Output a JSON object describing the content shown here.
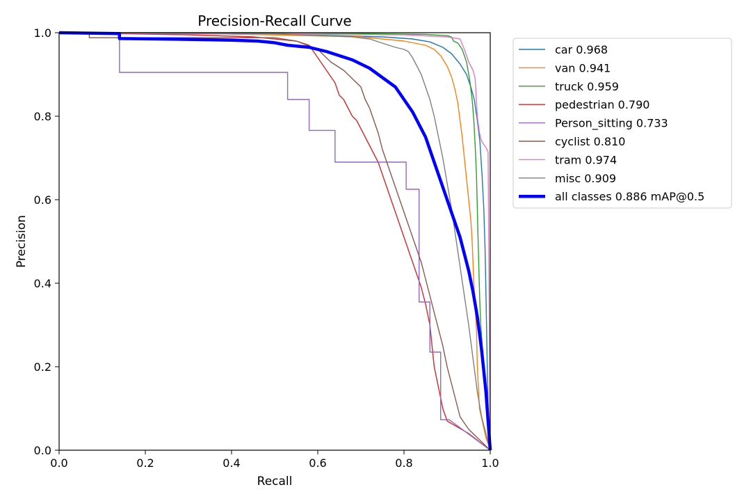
{
  "chart_data": {
    "type": "line",
    "title": "Precision-Recall Curve",
    "xlabel": "Recall",
    "ylabel": "Precision",
    "xlim": [
      0,
      1
    ],
    "ylim": [
      0,
      1
    ],
    "x_ticks": [
      "0.0",
      "0.2",
      "0.4",
      "0.6",
      "0.8",
      "1.0"
    ],
    "y_ticks": [
      "0.0",
      "0.2",
      "0.4",
      "0.6",
      "0.8",
      "1.0"
    ],
    "grid": false,
    "legend_position": "outside-right",
    "series": [
      {
        "name": "car",
        "label": "car 0.968",
        "color": "#1f77b4",
        "width": "thin",
        "points": [
          [
            0,
            1
          ],
          [
            0.3,
            0.998
          ],
          [
            0.6,
            0.994
          ],
          [
            0.75,
            0.99
          ],
          [
            0.82,
            0.985
          ],
          [
            0.86,
            0.978
          ],
          [
            0.89,
            0.965
          ],
          [
            0.91,
            0.95
          ],
          [
            0.93,
            0.925
          ],
          [
            0.945,
            0.9
          ],
          [
            0.955,
            0.87
          ],
          [
            0.963,
            0.84
          ],
          [
            0.97,
            0.79
          ],
          [
            0.976,
            0.74
          ],
          [
            0.981,
            0.66
          ],
          [
            0.985,
            0.58
          ],
          [
            0.988,
            0.48
          ],
          [
            0.99,
            0.38
          ],
          [
            0.993,
            0.2
          ],
          [
            0.996,
            0.08
          ],
          [
            1,
            0
          ]
        ]
      },
      {
        "name": "van",
        "label": "van 0.941",
        "color": "#ff7f0e",
        "width": "thin",
        "points": [
          [
            0,
            1
          ],
          [
            0.4,
            0.997
          ],
          [
            0.7,
            0.99
          ],
          [
            0.8,
            0.98
          ],
          [
            0.85,
            0.97
          ],
          [
            0.87,
            0.96
          ],
          [
            0.885,
            0.945
          ],
          [
            0.9,
            0.92
          ],
          [
            0.91,
            0.895
          ],
          [
            0.918,
            0.865
          ],
          [
            0.925,
            0.83
          ],
          [
            0.93,
            0.79
          ],
          [
            0.935,
            0.75
          ],
          [
            0.94,
            0.7
          ],
          [
            0.945,
            0.65
          ],
          [
            0.95,
            0.6
          ],
          [
            0.955,
            0.55
          ],
          [
            0.958,
            0.5
          ],
          [
            0.96,
            0.45
          ],
          [
            0.962,
            0.4
          ],
          [
            0.965,
            0.34
          ],
          [
            0.968,
            0.29
          ],
          [
            0.97,
            0.2
          ],
          [
            0.975,
            0.1
          ],
          [
            0.99,
            0.03
          ],
          [
            1,
            0
          ]
        ]
      },
      {
        "name": "truck",
        "label": "truck 0.959",
        "color": "#2ca02c",
        "width": "thin",
        "points": [
          [
            0,
            1
          ],
          [
            0.5,
            1
          ],
          [
            0.7,
            0.998
          ],
          [
            0.85,
            0.996
          ],
          [
            0.9,
            0.993
          ],
          [
            0.91,
            0.99
          ],
          [
            0.915,
            0.98
          ],
          [
            0.925,
            0.975
          ],
          [
            0.935,
            0.96
          ],
          [
            0.945,
            0.93
          ],
          [
            0.952,
            0.89
          ],
          [
            0.958,
            0.84
          ],
          [
            0.962,
            0.79
          ],
          [
            0.965,
            0.73
          ],
          [
            0.968,
            0.66
          ],
          [
            0.97,
            0.58
          ],
          [
            0.972,
            0.5
          ],
          [
            0.974,
            0.42
          ],
          [
            0.976,
            0.35
          ],
          [
            0.978,
            0.3
          ],
          [
            0.985,
            0.2
          ],
          [
            0.995,
            0.08
          ],
          [
            1,
            0
          ]
        ]
      },
      {
        "name": "pedestrian",
        "label": "pedestrian 0.790",
        "color": "#d62728",
        "width": "thin",
        "points": [
          [
            0,
            1
          ],
          [
            0.3,
            0.995
          ],
          [
            0.45,
            0.99
          ],
          [
            0.55,
            0.98
          ],
          [
            0.58,
            0.97
          ],
          [
            0.6,
            0.94
          ],
          [
            0.62,
            0.91
          ],
          [
            0.64,
            0.88
          ],
          [
            0.65,
            0.85
          ],
          [
            0.66,
            0.84
          ],
          [
            0.67,
            0.82
          ],
          [
            0.68,
            0.8
          ],
          [
            0.69,
            0.79
          ],
          [
            0.7,
            0.77
          ],
          [
            0.71,
            0.75
          ],
          [
            0.72,
            0.73
          ],
          [
            0.73,
            0.71
          ],
          [
            0.74,
            0.69
          ],
          [
            0.75,
            0.66
          ],
          [
            0.76,
            0.63
          ],
          [
            0.77,
            0.6
          ],
          [
            0.78,
            0.57
          ],
          [
            0.79,
            0.54
          ],
          [
            0.8,
            0.51
          ],
          [
            0.81,
            0.48
          ],
          [
            0.82,
            0.45
          ],
          [
            0.83,
            0.42
          ],
          [
            0.84,
            0.39
          ],
          [
            0.85,
            0.35
          ],
          [
            0.86,
            0.3
          ],
          [
            0.865,
            0.25
          ],
          [
            0.87,
            0.2
          ],
          [
            0.88,
            0.15
          ],
          [
            0.89,
            0.1
          ],
          [
            0.9,
            0.07
          ],
          [
            0.95,
            0.04
          ],
          [
            1,
            0
          ]
        ]
      },
      {
        "name": "Person_sitting",
        "label": "Person_sitting 0.733",
        "color": "#9467bd",
        "width": "thin",
        "points": [
          [
            0,
            1
          ],
          [
            0.14,
            1
          ],
          [
            0.14,
            0.986
          ],
          [
            0.14,
            0.905
          ],
          [
            0.53,
            0.905
          ],
          [
            0.53,
            0.84
          ],
          [
            0.58,
            0.84
          ],
          [
            0.58,
            0.766
          ],
          [
            0.64,
            0.766
          ],
          [
            0.64,
            0.69
          ],
          [
            0.805,
            0.69
          ],
          [
            0.805,
            0.625
          ],
          [
            0.835,
            0.625
          ],
          [
            0.835,
            0.355
          ],
          [
            0.86,
            0.355
          ],
          [
            0.86,
            0.235
          ],
          [
            0.885,
            0.235
          ],
          [
            0.885,
            0.073
          ],
          [
            0.905,
            0.073
          ],
          [
            1,
            0
          ]
        ]
      },
      {
        "name": "cyclist",
        "label": "cyclist 0.810",
        "color": "#8c564b",
        "width": "thin",
        "points": [
          [
            0,
            1
          ],
          [
            0.07,
            1
          ],
          [
            0.07,
            0.988
          ],
          [
            0.5,
            0.988
          ],
          [
            0.55,
            0.98
          ],
          [
            0.6,
            0.96
          ],
          [
            0.63,
            0.93
          ],
          [
            0.66,
            0.91
          ],
          [
            0.68,
            0.89
          ],
          [
            0.7,
            0.87
          ],
          [
            0.71,
            0.84
          ],
          [
            0.72,
            0.82
          ],
          [
            0.73,
            0.79
          ],
          [
            0.74,
            0.76
          ],
          [
            0.75,
            0.72
          ],
          [
            0.76,
            0.69
          ],
          [
            0.77,
            0.66
          ],
          [
            0.78,
            0.63
          ],
          [
            0.79,
            0.6
          ],
          [
            0.8,
            0.57
          ],
          [
            0.81,
            0.54
          ],
          [
            0.82,
            0.51
          ],
          [
            0.83,
            0.48
          ],
          [
            0.84,
            0.45
          ],
          [
            0.85,
            0.41
          ],
          [
            0.86,
            0.37
          ],
          [
            0.87,
            0.33
          ],
          [
            0.88,
            0.29
          ],
          [
            0.89,
            0.25
          ],
          [
            0.9,
            0.2
          ],
          [
            0.91,
            0.16
          ],
          [
            0.92,
            0.12
          ],
          [
            0.93,
            0.08
          ],
          [
            0.95,
            0.05
          ],
          [
            1,
            0
          ]
        ]
      },
      {
        "name": "tram",
        "label": "tram 0.974",
        "color": "#e377c2",
        "width": "thin",
        "points": [
          [
            0,
            1
          ],
          [
            0.2,
            0.998
          ],
          [
            0.5,
            0.997
          ],
          [
            0.8,
            0.995
          ],
          [
            0.9,
            0.99
          ],
          [
            0.93,
            0.985
          ],
          [
            0.94,
            0.96
          ],
          [
            0.95,
            0.93
          ],
          [
            0.96,
            0.91
          ],
          [
            0.965,
            0.89
          ],
          [
            0.97,
            0.8
          ],
          [
            0.975,
            0.76
          ],
          [
            0.98,
            0.74
          ],
          [
            0.99,
            0.725
          ],
          [
            0.995,
            0.715
          ],
          [
            1,
            0
          ]
        ]
      },
      {
        "name": "misc",
        "label": "misc 0.909",
        "color": "#7f7f7f",
        "width": "thin",
        "points": [
          [
            0,
            1
          ],
          [
            0.5,
            0.998
          ],
          [
            0.68,
            0.99
          ],
          [
            0.72,
            0.985
          ],
          [
            0.75,
            0.975
          ],
          [
            0.78,
            0.965
          ],
          [
            0.8,
            0.96
          ],
          [
            0.81,
            0.955
          ],
          [
            0.82,
            0.94
          ],
          [
            0.83,
            0.92
          ],
          [
            0.84,
            0.9
          ],
          [
            0.85,
            0.87
          ],
          [
            0.86,
            0.84
          ],
          [
            0.87,
            0.8
          ],
          [
            0.88,
            0.75
          ],
          [
            0.89,
            0.7
          ],
          [
            0.9,
            0.64
          ],
          [
            0.91,
            0.58
          ],
          [
            0.92,
            0.51
          ],
          [
            0.93,
            0.44
          ],
          [
            0.94,
            0.37
          ],
          [
            0.95,
            0.3
          ],
          [
            0.96,
            0.22
          ],
          [
            0.97,
            0.14
          ],
          [
            0.98,
            0.08
          ],
          [
            1,
            0
          ]
        ]
      },
      {
        "name": "all classes",
        "label": "all classes 0.886 mAP@0.5",
        "color": "#0000ff",
        "width": "thick",
        "points": [
          [
            0,
            1
          ],
          [
            0.14,
            0.998
          ],
          [
            0.14,
            0.986
          ],
          [
            0.3,
            0.984
          ],
          [
            0.4,
            0.982
          ],
          [
            0.46,
            0.98
          ],
          [
            0.5,
            0.976
          ],
          [
            0.53,
            0.97
          ],
          [
            0.58,
            0.965
          ],
          [
            0.62,
            0.955
          ],
          [
            0.65,
            0.945
          ],
          [
            0.68,
            0.935
          ],
          [
            0.7,
            0.925
          ],
          [
            0.72,
            0.915
          ],
          [
            0.74,
            0.9
          ],
          [
            0.76,
            0.885
          ],
          [
            0.78,
            0.87
          ],
          [
            0.79,
            0.855
          ],
          [
            0.8,
            0.84
          ],
          [
            0.81,
            0.825
          ],
          [
            0.82,
            0.81
          ],
          [
            0.83,
            0.79
          ],
          [
            0.84,
            0.77
          ],
          [
            0.85,
            0.75
          ],
          [
            0.86,
            0.72
          ],
          [
            0.87,
            0.69
          ],
          [
            0.88,
            0.66
          ],
          [
            0.89,
            0.63
          ],
          [
            0.9,
            0.6
          ],
          [
            0.91,
            0.57
          ],
          [
            0.92,
            0.54
          ],
          [
            0.93,
            0.51
          ],
          [
            0.94,
            0.47
          ],
          [
            0.95,
            0.43
          ],
          [
            0.96,
            0.38
          ],
          [
            0.97,
            0.32
          ],
          [
            0.98,
            0.24
          ],
          [
            0.99,
            0.14
          ],
          [
            1,
            0
          ]
        ]
      }
    ]
  }
}
